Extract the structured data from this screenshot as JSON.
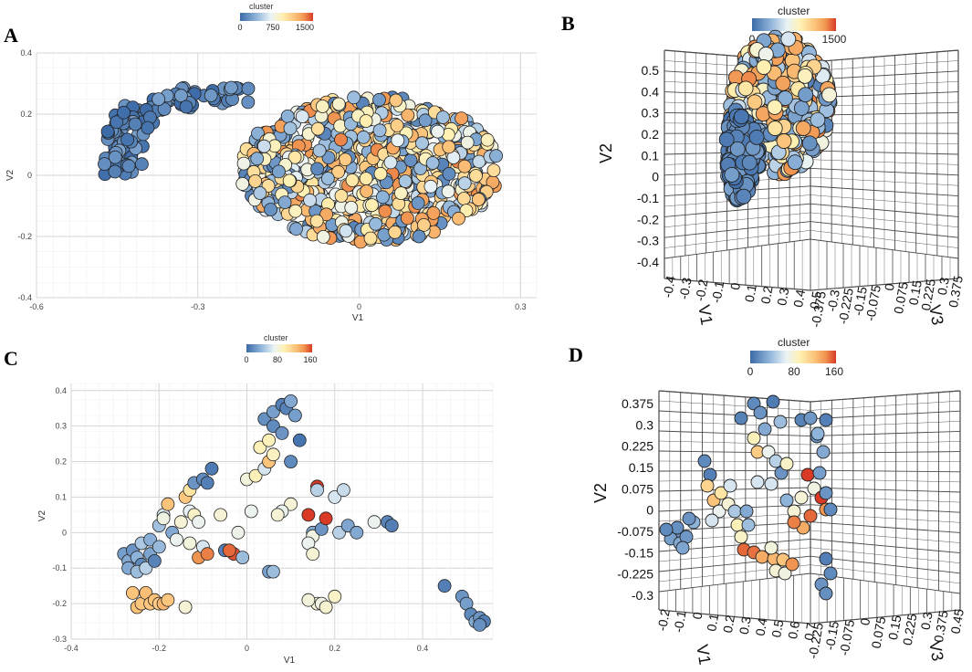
{
  "figure": {
    "panel_letters": [
      "A",
      "B",
      "C",
      "D"
    ]
  },
  "colors": {
    "scale": [
      "#3b6aa8",
      "#8fb4d9",
      "#eaf3f6",
      "#fff1b3",
      "#fcc37a",
      "#f0934f",
      "#d83a26"
    ],
    "grid_major": "#d6d6d6",
    "grid_minor": "#efefef",
    "grid3d": "#4a4a4a"
  },
  "chart_data": [
    {
      "panel": "A",
      "type": "scatter",
      "legend": {
        "title": "cluster",
        "ticks": [
          "0",
          "750",
          "1500"
        ],
        "range": [
          0,
          1500
        ]
      },
      "xlabel": "V1",
      "ylabel": "V2",
      "xlim": [
        -0.6,
        0.33
      ],
      "ylim": [
        -0.4,
        0.4
      ],
      "xticks": [
        "-0.6",
        "-0.3",
        "0",
        "0.3"
      ],
      "xtick_values": [
        -0.6,
        -0.3,
        0,
        0.3
      ],
      "yticks": [
        "0.4",
        "0.2",
        "0",
        "-0.2",
        "-0.4"
      ],
      "ytick_values": [
        0.4,
        0.2,
        0,
        -0.2,
        -0.4
      ],
      "groups": [
        {
          "shape": "arc",
          "x": [
            -0.47,
            -0.36
          ],
          "y": [
            -0.12,
            0.26
          ],
          "n": 110,
          "cmin": 0,
          "cmax": 260,
          "seed": 11
        },
        {
          "shape": "blob",
          "cx": 0.02,
          "cy": 0.02,
          "rx": 0.24,
          "ry": 0.24,
          "n": 780,
          "cmin": 100,
          "cmax": 1350,
          "seed": 23
        },
        {
          "shape": "blob",
          "cx": -0.16,
          "cy": 0.0,
          "rx": 0.06,
          "ry": 0.1,
          "n": 40,
          "cmin": 50,
          "cmax": 1200,
          "seed": 31
        }
      ]
    },
    {
      "panel": "B",
      "type": "scatter3d",
      "legend": {
        "title": "cluster",
        "ticks": [
          "0",
          "750",
          "1500"
        ],
        "range": [
          0,
          1500
        ]
      },
      "ylabel": "V2",
      "xlabel": "V1",
      "zlabel": "V3",
      "yticks": [
        "0.5",
        "0.4",
        "0.3",
        "0.2",
        "0.1",
        "0",
        "-0.1",
        "-0.2",
        "-0.3",
        "-0.4"
      ],
      "x_axis_ticks": [
        "-0.4",
        "-0.3",
        "-0.2",
        "-0.1",
        "0",
        "0.1",
        "0.2",
        "0.3",
        "0.4",
        "0.5"
      ],
      "z_axis_ticks": [
        "-0.375",
        "-0.3",
        "-0.225",
        "-0.15",
        "-0.075",
        "0",
        "0.075",
        "0.15",
        "0.225",
        "0.3",
        "0.375"
      ],
      "groups": [
        {
          "shape": "blob",
          "cx": 0.0,
          "cy": 0.05,
          "rx": 0.42,
          "ry": 0.6,
          "n": 420,
          "cmin": 100,
          "cmax": 1350,
          "seed": 41,
          "px": [
            855,
            115,
            110,
            150
          ]
        },
        {
          "shape": "blob",
          "cx": 0,
          "cy": 0,
          "rx": 1,
          "ry": 1,
          "n": 150,
          "cmin": 0,
          "cmax": 250,
          "seed": 43,
          "px": [
            815,
            170,
            36,
            100
          ]
        }
      ]
    },
    {
      "panel": "C",
      "type": "scatter",
      "legend": {
        "title": "cluster",
        "ticks": [
          "0",
          "80",
          "160"
        ],
        "range": [
          0,
          160
        ]
      },
      "xlabel": "V1",
      "ylabel": "V2",
      "xlim": [
        -0.4,
        0.56
      ],
      "ylim": [
        -0.3,
        0.42
      ],
      "xticks": [
        "-0.4",
        "-0.2",
        "0",
        "0.2",
        "0.4"
      ],
      "xtick_values": [
        -0.4,
        -0.2,
        0,
        0.2,
        0.4
      ],
      "yticks": [
        "0.4",
        "0.3",
        "0.2",
        "0.1",
        "0",
        "-0.1",
        "-0.2",
        "-0.3"
      ],
      "ytick_values": [
        0.4,
        0.3,
        0.2,
        0.1,
        0,
        -0.1,
        -0.2,
        -0.3
      ],
      "points": [
        [
          -0.28,
          -0.06,
          25
        ],
        [
          -0.27,
          -0.08,
          30
        ],
        [
          -0.26,
          -0.05,
          20
        ],
        [
          -0.25,
          -0.07,
          35
        ],
        [
          -0.24,
          -0.09,
          15
        ],
        [
          -0.27,
          -0.1,
          30
        ],
        [
          -0.25,
          -0.11,
          40
        ],
        [
          -0.23,
          -0.1,
          50
        ],
        [
          -0.22,
          -0.06,
          28
        ],
        [
          -0.24,
          -0.03,
          45
        ],
        [
          -0.22,
          -0.02,
          33
        ],
        [
          -0.2,
          -0.04,
          38
        ],
        [
          -0.21,
          -0.08,
          12
        ],
        [
          -0.2,
          0.02,
          42
        ],
        [
          -0.19,
          0.05,
          60
        ],
        [
          -0.18,
          0.08,
          120
        ],
        [
          -0.19,
          0.04,
          75
        ],
        [
          -0.17,
          0.0,
          30
        ],
        [
          -0.16,
          -0.02,
          70
        ],
        [
          -0.15,
          0.03,
          80
        ],
        [
          -0.13,
          0.06,
          66
        ],
        [
          -0.26,
          -0.17,
          120
        ],
        [
          -0.25,
          -0.21,
          120
        ],
        [
          -0.24,
          -0.2,
          118
        ],
        [
          -0.23,
          -0.17,
          122
        ],
        [
          -0.22,
          -0.2,
          118
        ],
        [
          -0.21,
          -0.19,
          120
        ],
        [
          -0.2,
          -0.2,
          115
        ],
        [
          -0.19,
          -0.2,
          125
        ],
        [
          -0.18,
          -0.19,
          118
        ],
        [
          -0.14,
          -0.21,
          80
        ],
        [
          -0.14,
          0.1,
          118
        ],
        [
          -0.13,
          0.12,
          100
        ],
        [
          -0.12,
          0.14,
          20
        ],
        [
          -0.1,
          0.15,
          15
        ],
        [
          -0.09,
          0.14,
          10
        ],
        [
          -0.08,
          0.18,
          8
        ],
        [
          -0.12,
          0.05,
          85
        ],
        [
          -0.11,
          0.03,
          70
        ],
        [
          -0.13,
          -0.03,
          78
        ],
        [
          -0.11,
          -0.07,
          140
        ],
        [
          -0.1,
          -0.04,
          60
        ],
        [
          -0.09,
          -0.06,
          145
        ],
        [
          -0.06,
          0.05,
          80
        ],
        [
          -0.05,
          -0.05,
          10
        ],
        [
          -0.03,
          -0.06,
          155
        ],
        [
          -0.04,
          -0.05,
          150
        ],
        [
          -0.02,
          0.0,
          72
        ],
        [
          0.0,
          0.15,
          78
        ],
        [
          -0.01,
          -0.07,
          40
        ],
        [
          0.01,
          0.06,
          70
        ],
        [
          0.02,
          0.16,
          90
        ],
        [
          0.03,
          0.24,
          90
        ],
        [
          0.04,
          0.18,
          60
        ],
        [
          0.05,
          0.2,
          120
        ],
        [
          0.05,
          0.26,
          90
        ],
        [
          0.04,
          0.32,
          18
        ],
        [
          0.06,
          0.34,
          25
        ],
        [
          0.06,
          0.3,
          15
        ],
        [
          0.08,
          0.36,
          10
        ],
        [
          0.09,
          0.35,
          12
        ],
        [
          0.1,
          0.37,
          30
        ],
        [
          0.11,
          0.33,
          25
        ],
        [
          0.08,
          0.28,
          20
        ],
        [
          0.06,
          0.22,
          88
        ],
        [
          0.1,
          0.2,
          15
        ],
        [
          0.12,
          0.26,
          5
        ],
        [
          0.1,
          0.08,
          80
        ],
        [
          0.08,
          0.06,
          70
        ],
        [
          0.07,
          0.05,
          80
        ],
        [
          0.05,
          -0.11,
          25
        ],
        [
          0.06,
          -0.11,
          40
        ],
        [
          0.14,
          0.05,
          160
        ],
        [
          0.15,
          0.0,
          30
        ],
        [
          0.15,
          -0.01,
          75
        ],
        [
          0.16,
          0.13,
          160
        ],
        [
          0.14,
          -0.03,
          70
        ],
        [
          0.15,
          -0.06,
          80
        ],
        [
          0.16,
          0.12,
          50
        ],
        [
          0.17,
          0.01,
          20
        ],
        [
          0.18,
          0.04,
          160
        ],
        [
          0.16,
          -0.2,
          80
        ],
        [
          0.14,
          -0.19,
          78
        ],
        [
          0.17,
          -0.2,
          75
        ],
        [
          0.18,
          -0.21,
          82
        ],
        [
          0.2,
          -0.18,
          85
        ],
        [
          0.2,
          0.1,
          60
        ],
        [
          0.21,
          0.0,
          50
        ],
        [
          0.22,
          0.12,
          55
        ],
        [
          0.23,
          0.02,
          28
        ],
        [
          0.25,
          0.0,
          30
        ],
        [
          0.29,
          0.03,
          70
        ],
        [
          0.32,
          0.03,
          12
        ],
        [
          0.33,
          0.02,
          10
        ],
        [
          0.45,
          -0.15,
          10
        ],
        [
          0.49,
          -0.18,
          20
        ],
        [
          0.5,
          -0.2,
          25
        ],
        [
          0.51,
          -0.23,
          15
        ],
        [
          0.52,
          -0.25,
          30
        ],
        [
          0.53,
          -0.24,
          20
        ],
        [
          0.54,
          -0.25,
          10
        ],
        [
          0.53,
          -0.26,
          18
        ]
      ]
    },
    {
      "panel": "D",
      "type": "scatter3d",
      "legend": {
        "title": "cluster",
        "ticks": [
          "0",
          "80",
          "160"
        ],
        "range": [
          0,
          160
        ]
      },
      "ylabel": "V2",
      "xlabel": "V1",
      "zlabel": "V3",
      "yticks": [
        "0.375",
        "0.3",
        "0.225",
        "0.15",
        "0.075",
        "0",
        "-0.075",
        "-0.15",
        "-0.225",
        "-0.3"
      ],
      "x_axis_ticks": [
        "-0.2",
        "-0.1",
        "0",
        "0.1",
        "0.2",
        "0.3",
        "0.4",
        "0.5",
        "0.6",
        "0.7"
      ],
      "z_axis_ticks": [
        "-0.225",
        "-0.15",
        "-0.075",
        "0",
        "0.075",
        "0.15",
        "0.225",
        "0.3",
        "0.375",
        "0.45"
      ],
      "points": [
        [
          740,
          583,
          20
        ],
        [
          735,
          590,
          25
        ],
        [
          745,
          595,
          30
        ],
        [
          752,
          588,
          22
        ],
        [
          742,
          578,
          18
        ],
        [
          730,
          580,
          15
        ],
        [
          748,
          600,
          28
        ],
        [
          760,
          572,
          35
        ],
        [
          755,
          568,
          20
        ],
        [
          772,
          505,
          15
        ],
        [
          778,
          520,
          10
        ],
        [
          775,
          532,
          110
        ],
        [
          782,
          548,
          120
        ],
        [
          788,
          560,
          70
        ],
        [
          780,
          570,
          60
        ],
        [
          790,
          540,
          100
        ],
        [
          798,
          552,
          80
        ],
        [
          805,
          560,
          45
        ],
        [
          808,
          575,
          90
        ],
        [
          812,
          588,
          85
        ],
        [
          820,
          575,
          40
        ],
        [
          815,
          602,
          150
        ],
        [
          826,
          605,
          148
        ],
        [
          835,
          610,
          130
        ],
        [
          848,
          612,
          125
        ],
        [
          858,
          613,
          120
        ],
        [
          850,
          625,
          80
        ],
        [
          860,
          628,
          75
        ],
        [
          868,
          618,
          140
        ],
        [
          845,
          600,
          78
        ],
        [
          812,
          458,
          12
        ],
        [
          826,
          442,
          15
        ],
        [
          833,
          452,
          20
        ],
        [
          847,
          440,
          8
        ],
        [
          838,
          470,
          30
        ],
        [
          826,
          480,
          90
        ],
        [
          830,
          495,
          115
        ],
        [
          842,
          495,
          70
        ],
        [
          850,
          505,
          50
        ],
        [
          845,
          530,
          60
        ],
        [
          830,
          528,
          60
        ],
        [
          856,
          518,
          20
        ],
        [
          862,
          548,
          35
        ],
        [
          870,
          560,
          80
        ],
        [
          878,
          545,
          80
        ],
        [
          885,
          520,
          160
        ],
        [
          892,
          535,
          75
        ],
        [
          900,
          545,
          160
        ],
        [
          905,
          558,
          140
        ],
        [
          888,
          565,
          150
        ],
        [
          880,
          578,
          130
        ],
        [
          870,
          572,
          145
        ],
        [
          910,
          558,
          15
        ],
        [
          905,
          540,
          20
        ],
        [
          898,
          518,
          25
        ],
        [
          902,
          495,
          30
        ],
        [
          895,
          478,
          18
        ],
        [
          878,
          460,
          12
        ],
        [
          888,
          458,
          22
        ],
        [
          905,
          460,
          10
        ],
        [
          896,
          475,
          35
        ],
        [
          905,
          612,
          10
        ],
        [
          910,
          628,
          15
        ],
        [
          900,
          640,
          20
        ],
        [
          905,
          650,
          18
        ],
        [
          855,
          462,
          40
        ],
        [
          862,
          508,
          85
        ],
        [
          818,
          560,
          30
        ],
        [
          800,
          532,
          60
        ]
      ]
    }
  ]
}
